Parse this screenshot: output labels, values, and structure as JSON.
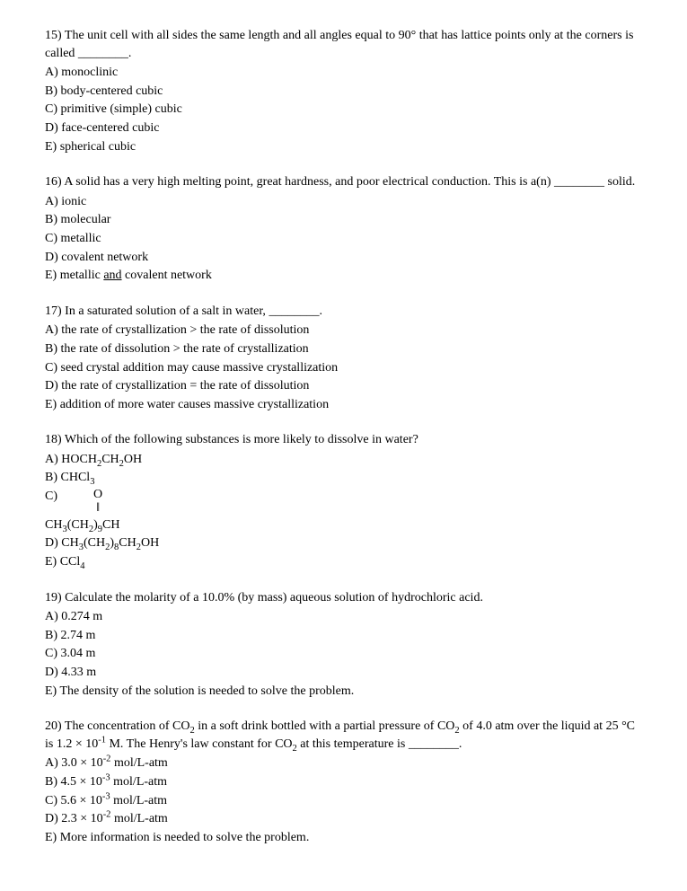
{
  "questions": [
    {
      "num": "15)",
      "text_before": "The unit cell with all sides the same length and all angles equal to 90° that has lattice points only at the corners is called ",
      "blank": "________",
      "text_after": ".",
      "options": [
        {
          "label": "A)",
          "text": "monoclinic"
        },
        {
          "label": "B)",
          "text": "body-centered cubic"
        },
        {
          "label": "C)",
          "text": "primitive (simple) cubic"
        },
        {
          "label": "D)",
          "text": "face-centered cubic"
        },
        {
          "label": "E)",
          "text": "spherical cubic"
        }
      ]
    },
    {
      "num": "16)",
      "text_before": "A solid has a very high melting point, great hardness, and poor electrical conduction. This is a(n) ",
      "blank": "________",
      "text_after": " solid.",
      "options": [
        {
          "label": "A)",
          "text": "ionic"
        },
        {
          "label": "B)",
          "text": "molecular"
        },
        {
          "label": "C)",
          "text": "metallic"
        },
        {
          "label": "D)",
          "text": "covalent network"
        },
        {
          "label": "E)",
          "html": "metallic <span class=\"underline\">and</span> covalent network"
        }
      ]
    },
    {
      "num": "17)",
      "text_before": "In a saturated solution of a salt in water, ",
      "blank": "________",
      "text_after": ".",
      "options": [
        {
          "label": "A)",
          "text": "the rate of crystallization  >  the rate of dissolution"
        },
        {
          "label": "B)",
          "text": "the rate of dissolution  >  the rate of crystallization"
        },
        {
          "label": "C)",
          "text": "seed crystal addition may cause massive crystallization"
        },
        {
          "label": "D)",
          "text": "the rate of crystallization  =  the rate of dissolution"
        },
        {
          "label": "E)",
          "text": "addition of more water causes massive crystallization"
        }
      ]
    },
    {
      "num": "18)",
      "text_before": "Which of the following substances is more likely to dissolve in water?",
      "blank": "",
      "text_after": "",
      "options": [
        {
          "label": "A)",
          "html": "HOCH<span class=\"sub\">2</span>CH<span class=\"sub\">2</span>OH"
        },
        {
          "label": "B)",
          "html": "CHCl<span class=\"sub\">3</span>"
        },
        {
          "label": "C)",
          "struct": {
            "top": "O",
            "mid": "‖"
          }
        },
        {
          "bare": true,
          "html": "CH<span class=\"sub\">3</span>(CH<span class=\"sub\">2</span>)<span class=\"sub\">9</span>CH"
        },
        {
          "label": "D)",
          "html": "CH<span class=\"sub\">3</span>(CH<span class=\"sub\">2</span>)<span class=\"sub\">8</span>CH<span class=\"sub\">2</span>OH"
        },
        {
          "label": "E)",
          "html": "CCl<span class=\"sub\">4</span>"
        }
      ]
    },
    {
      "num": "19)",
      "text_before": "Calculate the molarity of a 10.0% (by mass) aqueous solution of hydrochloric acid.",
      "blank": "",
      "text_after": "",
      "options": [
        {
          "label": "A)",
          "text": "0.274 m"
        },
        {
          "label": "B)",
          "text": "2.74 m"
        },
        {
          "label": "C)",
          "text": "3.04 m"
        },
        {
          "label": "D)",
          "text": "4.33 m"
        },
        {
          "label": "E)",
          "text": "The density of the solution is needed to solve the problem."
        }
      ]
    },
    {
      "num": "20)",
      "text_html_before": "The concentration of CO<span class=\"sub\">2</span> in a soft drink bottled with a partial pressure of CO<span class=\"sub\">2</span> of 4.0 atm over the liquid at 25 °C is 1.2 × 10<span class=\"sup\">-1</span> M. The Henry's law constant for CO<span class=\"sub\">2</span> at this temperature is ",
      "blank": "________",
      "text_after": ".",
      "options": [
        {
          "label": "A)",
          "html": "3.0 × 10<span class=\"sup\">-2</span> mol/L-atm"
        },
        {
          "label": "B)",
          "html": "4.5 × 10<span class=\"sup\">-3</span> mol/L-atm"
        },
        {
          "label": "C)",
          "html": "5.6 × 10<span class=\"sup\">-3</span> mol/L-atm"
        },
        {
          "label": "D)",
          "html": "2.3 × 10<span class=\"sup\">-2</span> mol/L-atm"
        },
        {
          "label": "E)",
          "text": "More information is needed to solve the problem."
        }
      ]
    }
  ]
}
